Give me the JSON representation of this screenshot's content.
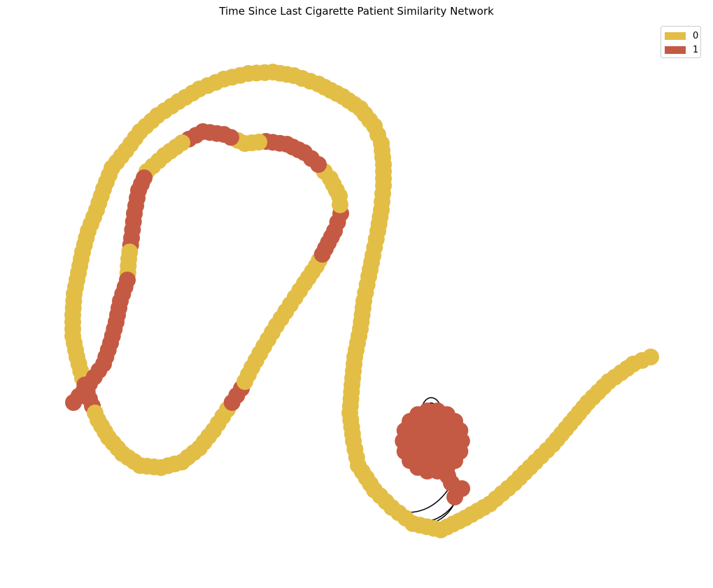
{
  "title": "Time Since Last Cigarette Patient Similarity Network",
  "legend": [
    {
      "label": "0",
      "color": "#e3be46"
    },
    {
      "label": "1",
      "color": "#c55a44"
    }
  ],
  "chart_data": {
    "type": "network",
    "title": "Time Since Last Cigarette Patient Similarity Network",
    "node_classes": [
      "0",
      "1"
    ],
    "class_colors": {
      "0": "#e3be46",
      "1": "#c55a44"
    },
    "edge_color": "#000000",
    "axes_visible": false,
    "grid": false,
    "legend_position": "top-right"
  }
}
